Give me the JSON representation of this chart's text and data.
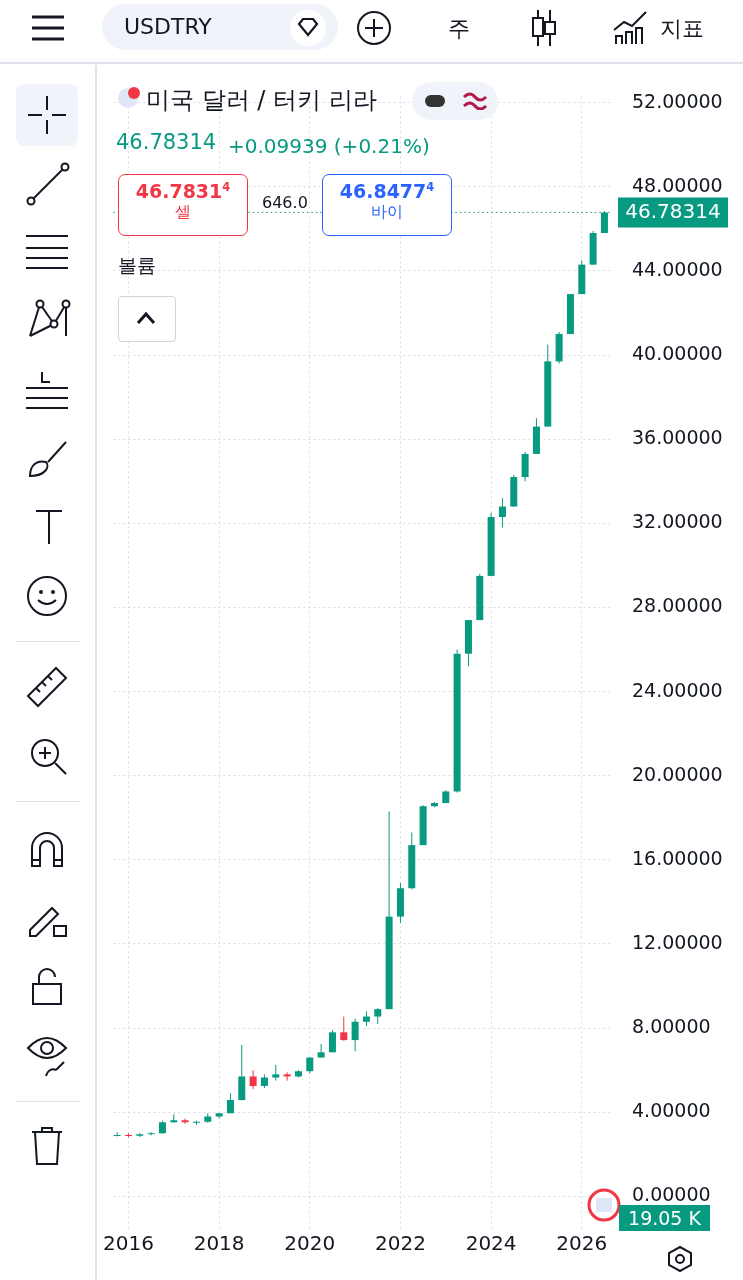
{
  "chart_data": {
    "type": "candlestick",
    "title": "미국 달러 / 터키 리라",
    "subtitle": "46.78314",
    "x": [
      "2015-10",
      "2016-01",
      "2016-04",
      "2016-07",
      "2016-10",
      "2017-01",
      "2017-04",
      "2017-07",
      "2017-10",
      "2018-01",
      "2018-04",
      "2018-07",
      "2018-10",
      "2019-01",
      "2019-04",
      "2019-07",
      "2019-10",
      "2020-01",
      "2020-04",
      "2020-07",
      "2020-10",
      "2021-01",
      "2021-04",
      "2021-07",
      "2021-10",
      "2022-01",
      "2022-04",
      "2022-07",
      "2022-10",
      "2023-01",
      "2023-04",
      "2023-07",
      "2023-10",
      "2024-01",
      "2024-04",
      "2024-07",
      "2024-10",
      "2025-01",
      "2025-04",
      "2025-07",
      "2025-10",
      "2026-01",
      "2026-04",
      "2026-07"
    ],
    "ohlc": [
      [
        2.9,
        3.05,
        2.85,
        2.92
      ],
      [
        2.92,
        3.0,
        2.8,
        2.88
      ],
      [
        2.88,
        3.0,
        2.82,
        2.95
      ],
      [
        2.95,
        3.05,
        2.9,
        3.0
      ],
      [
        3.0,
        3.6,
        2.98,
        3.52
      ],
      [
        3.52,
        3.9,
        3.5,
        3.62
      ],
      [
        3.62,
        3.7,
        3.45,
        3.52
      ],
      [
        3.52,
        3.6,
        3.4,
        3.55
      ],
      [
        3.55,
        3.95,
        3.5,
        3.8
      ],
      [
        3.8,
        3.95,
        3.7,
        3.95
      ],
      [
        3.95,
        4.9,
        3.95,
        4.58
      ],
      [
        4.58,
        7.2,
        4.55,
        5.7
      ],
      [
        5.7,
        6.0,
        5.1,
        5.25
      ],
      [
        5.25,
        5.8,
        5.15,
        5.65
      ],
      [
        5.65,
        6.25,
        5.5,
        5.8
      ],
      [
        5.8,
        5.9,
        5.5,
        5.7
      ],
      [
        5.7,
        6.0,
        5.65,
        5.95
      ],
      [
        5.95,
        6.6,
        5.85,
        6.6
      ],
      [
        6.6,
        7.25,
        6.6,
        6.85
      ],
      [
        6.85,
        7.9,
        6.85,
        7.8
      ],
      [
        7.8,
        8.55,
        7.4,
        7.43
      ],
      [
        7.43,
        8.45,
        6.9,
        8.3
      ],
      [
        8.3,
        8.8,
        8.1,
        8.55
      ],
      [
        8.55,
        8.95,
        8.2,
        8.9
      ],
      [
        8.9,
        18.3,
        8.9,
        13.3
      ],
      [
        13.3,
        14.9,
        13.0,
        14.65
      ],
      [
        14.65,
        17.3,
        14.6,
        16.7
      ],
      [
        16.7,
        18.6,
        16.7,
        18.55
      ],
      [
        18.55,
        18.75,
        18.5,
        18.7
      ],
      [
        18.7,
        19.3,
        18.7,
        19.25
      ],
      [
        19.25,
        26.0,
        19.2,
        25.8
      ],
      [
        25.8,
        27.4,
        25.2,
        27.4
      ],
      [
        27.4,
        29.6,
        27.4,
        29.5
      ],
      [
        29.5,
        32.5,
        29.5,
        32.3
      ],
      [
        32.3,
        33.2,
        31.8,
        32.8
      ],
      [
        32.8,
        34.3,
        32.8,
        34.2
      ],
      [
        34.2,
        35.4,
        34.0,
        35.3
      ],
      [
        35.3,
        37.0,
        35.3,
        36.6
      ],
      [
        36.6,
        40.5,
        36.6,
        39.7
      ],
      [
        39.7,
        41.1,
        39.6,
        41.0
      ],
      [
        41.0,
        42.9,
        41.0,
        42.9
      ],
      [
        42.9,
        44.5,
        42.9,
        44.3
      ],
      [
        44.3,
        45.9,
        44.3,
        45.8
      ],
      [
        45.8,
        46.85,
        45.8,
        46.78314
      ]
    ],
    "colors": [
      "#089981",
      "#f23645",
      "#089981",
      "#089981",
      "#089981",
      "#089981",
      "#f23645",
      "#089981",
      "#089981",
      "#089981",
      "#089981",
      "#089981",
      "#f23645",
      "#089981",
      "#089981",
      "#f23645",
      "#089981",
      "#089981",
      "#089981",
      "#089981",
      "#f23645",
      "#089981",
      "#089981",
      "#089981",
      "#089981",
      "#089981",
      "#089981",
      "#089981",
      "#089981",
      "#089981",
      "#089981",
      "#089981",
      "#089981",
      "#089981",
      "#089981",
      "#089981",
      "#089981",
      "#089981",
      "#089981",
      "#089981",
      "#089981",
      "#089981",
      "#089981",
      "#089981"
    ],
    "xlim": [
      "2015-09",
      "2026-09"
    ],
    "xticks": [
      "2016",
      "2018",
      "2020",
      "2022",
      "2024",
      "2026"
    ],
    "ylim": [
      -1.6,
      52.3
    ],
    "yticks": [
      {
        "value": 0,
        "label": "0.00000"
      },
      {
        "value": 4,
        "label": "4.00000"
      },
      {
        "value": 8,
        "label": "8.00000"
      },
      {
        "value": 12,
        "label": "12.00000"
      },
      {
        "value": 16,
        "label": "16.00000"
      },
      {
        "value": 20,
        "label": "20.00000"
      },
      {
        "value": 24,
        "label": "24.00000"
      },
      {
        "value": 28,
        "label": "28.00000"
      },
      {
        "value": 32,
        "label": "32.00000"
      },
      {
        "value": 36,
        "label": "36.00000"
      },
      {
        "value": 40,
        "label": "40.00000"
      },
      {
        "value": 44,
        "label": "44.00000"
      },
      {
        "value": 48,
        "label": "48.00000"
      },
      {
        "value": 52,
        "label": "52.00000"
      }
    ],
    "grid": true,
    "ref_lines": [
      {
        "axis": "y",
        "value": 46.78314,
        "label": "46.78314",
        "color": "#089981",
        "line_style": "dotted"
      }
    ],
    "annotations": [
      "USDTRY",
      "주",
      "지표",
      "+0.09939 (+0.21%)",
      "46.7831$^{4}$",
      "셀",
      "646.0",
      "46.8477$^{4}$",
      "바이",
      "볼륨",
      "19.05 K"
    ]
  }
}
